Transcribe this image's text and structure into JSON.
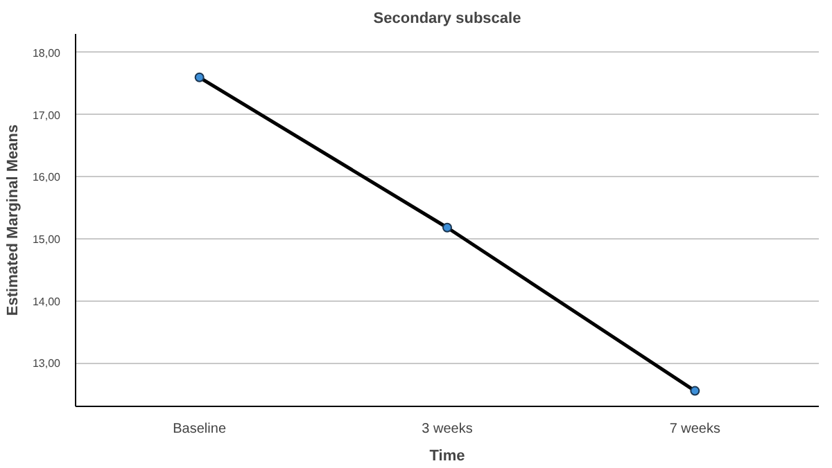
{
  "chart_data": {
    "type": "line",
    "title": "Secondary subscale",
    "xlabel": "Time",
    "ylabel": "Estimated Marginal Means",
    "categories": [
      "Baseline",
      "3 weeks",
      "7 weeks"
    ],
    "series": [
      {
        "color": "#000000",
        "values": [
          17.6,
          15.18,
          12.55
        ]
      }
    ],
    "ylim": [
      12.3,
      18.3
    ],
    "yticks": [
      {
        "value": 13,
        "label": "13,00"
      },
      {
        "value": 14,
        "label": "14,00"
      },
      {
        "value": 15,
        "label": "15,00"
      },
      {
        "value": 16,
        "label": "16,00"
      },
      {
        "value": 17,
        "label": "17,00"
      },
      {
        "value": 18,
        "label": "18,00"
      }
    ],
    "grid": "y",
    "marker": "circle",
    "line_style": "solid"
  }
}
